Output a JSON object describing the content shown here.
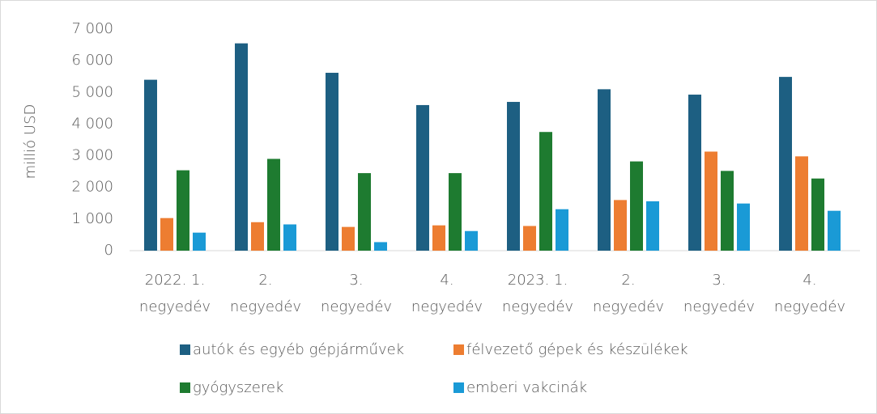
{
  "chart_data": {
    "type": "bar",
    "y_label": "millió USD",
    "categories": [
      [
        "2022. 1.",
        "negyedév"
      ],
      [
        "2.",
        "negyedév"
      ],
      [
        "3.",
        "negyedév"
      ],
      [
        "4.",
        "negyedév"
      ],
      [
        "2023. 1.",
        "negyedév"
      ],
      [
        "2.",
        "negyedév"
      ],
      [
        "3.",
        "negyedév"
      ],
      [
        "4.",
        "negyedév"
      ]
    ],
    "series": [
      {
        "name": "autók és egyéb gépjárművek",
        "color": "#1d5f82",
        "values": [
          5400,
          6550,
          5620,
          4600,
          4700,
          5100,
          4930,
          5490
        ]
      },
      {
        "name": "félvezető gépek és készülékek",
        "color": "#ed7d31",
        "values": [
          1030,
          900,
          750,
          800,
          780,
          1600,
          3130,
          2980
        ]
      },
      {
        "name": "gyógyszerek",
        "color": "#1e7b30",
        "values": [
          2540,
          2900,
          2450,
          2450,
          3750,
          2820,
          2520,
          2280
        ]
      },
      {
        "name": "emberi vakcinák",
        "color": "#1a9ad6",
        "values": [
          570,
          830,
          270,
          620,
          1310,
          1560,
          1490,
          1260
        ]
      }
    ],
    "ylim": [
      0,
      7000
    ],
    "yticks": [
      0,
      {
        "value": 1000,
        "label": "1 000"
      },
      {
        "value": 2000,
        "label": "2 000"
      },
      {
        "value": 3000,
        "label": "3 000"
      },
      {
        "value": 4000,
        "label": "4 000"
      },
      {
        "value": 5000,
        "label": "5 000"
      },
      {
        "value": 6000,
        "label": "6 000"
      },
      {
        "value": 7000,
        "label": "7 000"
      }
    ],
    "grid": false,
    "legend": "bottom"
  }
}
